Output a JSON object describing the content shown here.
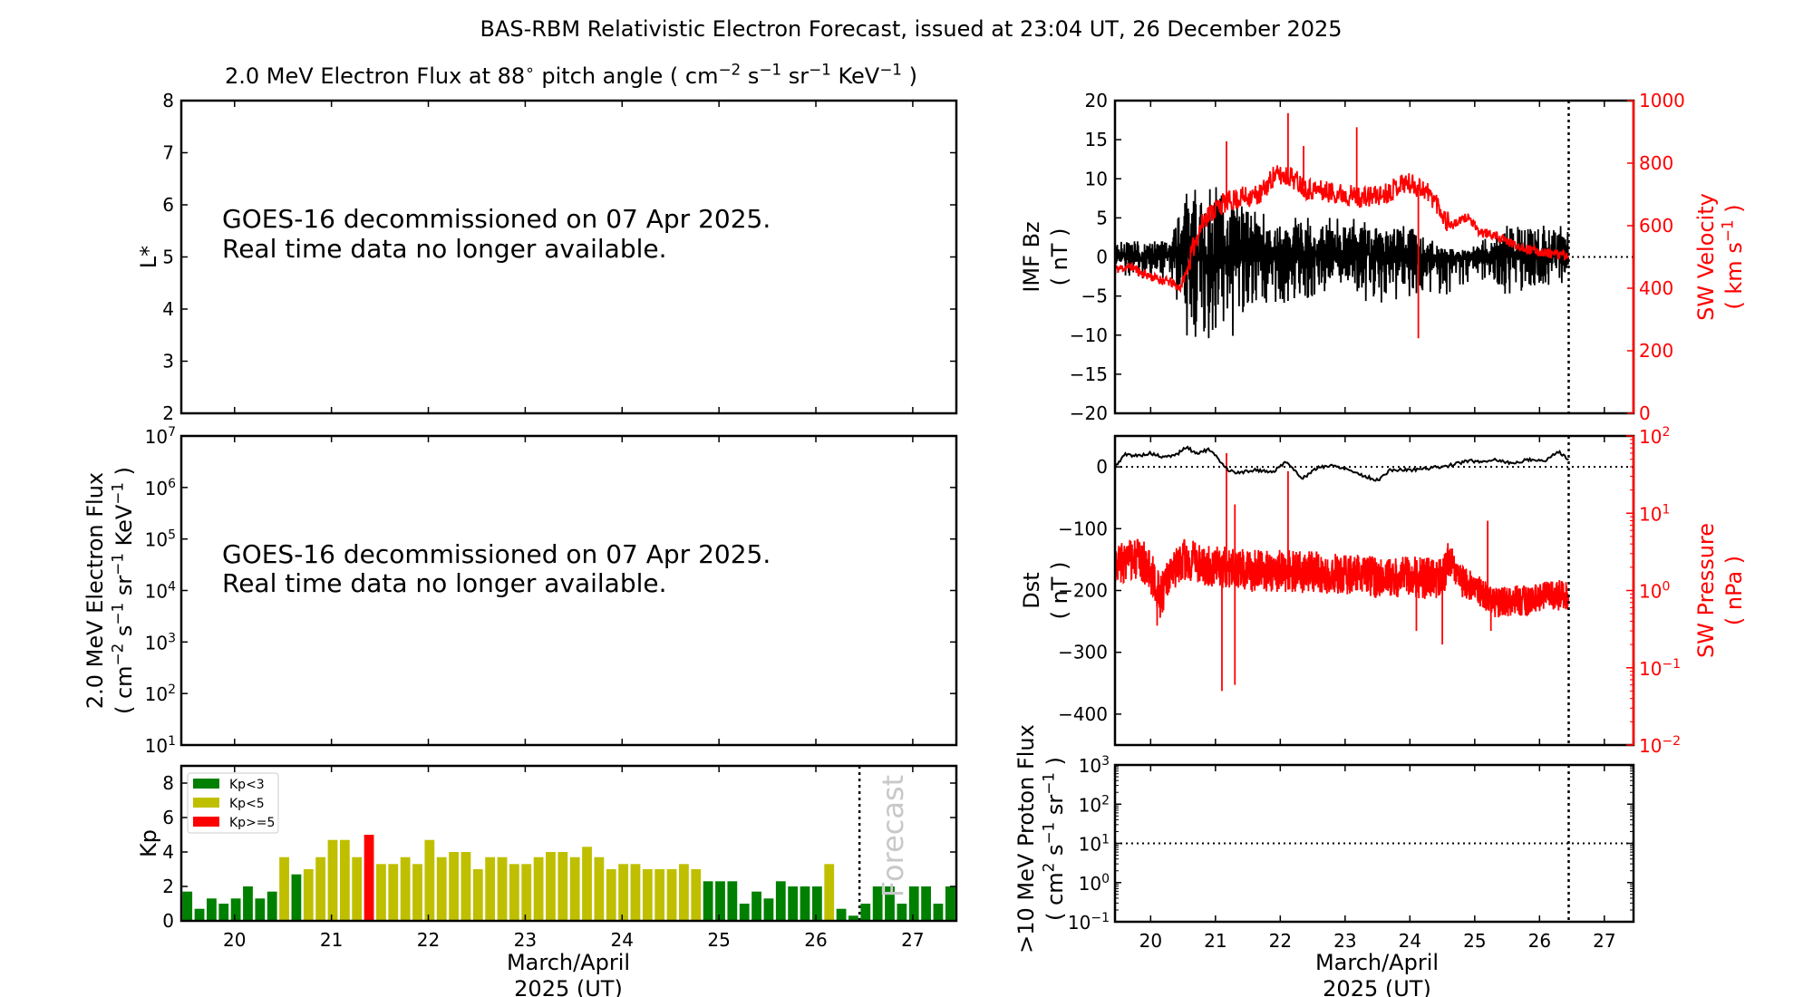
{
  "title": "BAS-RBM Relativistic Electron Forecast, issued at 23:04 UT, 26 December 2025",
  "left_title": [
    {
      "t": "2.0 MeV Electron Flux at 88"
    },
    {
      "t": "∘",
      "sup": true
    },
    {
      "t": "  pitch angle ( cm"
    },
    {
      "t": "−2",
      "sup": true
    },
    {
      "t": " s"
    },
    {
      "t": "−1",
      "sup": true
    },
    {
      "t": " sr"
    },
    {
      "t": "−1",
      "sup": true
    },
    {
      "t": " KeV"
    },
    {
      "t": "−1",
      "sup": true
    },
    {
      "t": " )"
    }
  ],
  "notices": {
    "lstar_line1": "GOES-16 decommissioned on 07 Apr 2025.",
    "lstar_line2": "Real time data no longer available.",
    "flux_line1": "GOES-16 decommissioned on 07 Apr 2025.",
    "flux_line2": "Real time data no longer available."
  },
  "xlabel_line1": "March/April",
  "xlabel_line2": "2025 (UT)",
  "forecast_label": "Forecast",
  "colors": {
    "kp_low": "#008000",
    "kp_mid": "#bfbf00",
    "kp_high": "#ff0000",
    "secondary": "#ff0000"
  },
  "chart_data": [
    {
      "id": "lstar",
      "type": "line",
      "ylabel": "L*",
      "ylim": [
        2,
        8
      ],
      "yticks": [
        2,
        3,
        4,
        5,
        6,
        7,
        8
      ],
      "xlim": [
        19.45,
        27.45
      ],
      "series": []
    },
    {
      "id": "electron_flux",
      "type": "line",
      "yscale": "log",
      "ylabel_line1": "2.0 MeV Electron Flux",
      "ylabel_line2": [
        {
          "t": "( cm"
        },
        {
          "t": "−2",
          "sup": true
        },
        {
          "t": " s"
        },
        {
          "t": "−1",
          "sup": true
        },
        {
          "t": " sr"
        },
        {
          "t": "−1",
          "sup": true
        },
        {
          "t": " KeV"
        },
        {
          "t": "−1",
          "sup": true
        },
        {
          "t": " )"
        }
      ],
      "ylim_exp": [
        1,
        7
      ],
      "ytick_exp": [
        1,
        2,
        3,
        4,
        5,
        6,
        7
      ],
      "xlim": [
        19.45,
        27.45
      ],
      "series": []
    },
    {
      "id": "kp",
      "type": "bar",
      "ylabel": "Kp",
      "ylim": [
        0,
        9
      ],
      "yticks": [
        0,
        2,
        4,
        6,
        8
      ],
      "xlim": [
        19.45,
        27.45
      ],
      "xticks": [
        20,
        21,
        22,
        23,
        24,
        25,
        26,
        27
      ],
      "bar_start": 19.45,
      "bar_step_days": 0.125,
      "forecast_from": 26.45,
      "legend": [
        "Kp<3",
        "Kp<5",
        "Kp>=5"
      ],
      "legend_position": "upper-left",
      "values": [
        1.7,
        0.7,
        1.3,
        1.0,
        1.3,
        2.0,
        1.3,
        1.7,
        3.7,
        2.7,
        3.0,
        3.7,
        4.7,
        4.7,
        3.7,
        5.0,
        3.3,
        3.3,
        3.7,
        3.3,
        4.7,
        3.7,
        4.0,
        4.0,
        3.0,
        3.7,
        3.7,
        3.3,
        3.3,
        3.7,
        4.0,
        4.0,
        3.7,
        4.3,
        3.7,
        3.0,
        3.3,
        3.3,
        3.0,
        3.0,
        3.0,
        3.3,
        3.0,
        2.3,
        2.3,
        2.3,
        1.0,
        1.7,
        1.3,
        2.3,
        2.0,
        2.0,
        2.0,
        3.3,
        0.7,
        0.3,
        1.0,
        2.0,
        2.0,
        1.0,
        2.0,
        2.0,
        1.0,
        2.0
      ]
    },
    {
      "id": "imf_sw",
      "type": "line",
      "ylabel_line1": "IMF Bz",
      "ylabel_line2": "( nT )",
      "ylim": [
        -20,
        20
      ],
      "yticks": [
        -20,
        -15,
        -10,
        -5,
        0,
        5,
        10,
        15,
        20
      ],
      "y2label_line1": "SW Velocity",
      "y2label_line2": [
        {
          "t": "( km s"
        },
        {
          "t": "−1",
          "sup": true
        },
        {
          "t": " )"
        }
      ],
      "y2lim": [
        0,
        1000
      ],
      "y2ticks": [
        0,
        200,
        400,
        600,
        800,
        1000
      ],
      "xlim": [
        19.45,
        27.45
      ],
      "issue_time": 26.45,
      "bz_envelope_max_min": [
        [
          19.45,
          2,
          -2.5
        ],
        [
          20.3,
          2,
          -3
        ],
        [
          20.4,
          5,
          -6
        ],
        [
          20.6,
          9,
          -12
        ],
        [
          21.0,
          9,
          -11
        ],
        [
          21.3,
          7,
          -11
        ],
        [
          21.5,
          6,
          -8
        ],
        [
          22.0,
          5,
          -6.5
        ],
        [
          22.5,
          5,
          -5
        ],
        [
          23.0,
          5,
          -5
        ],
        [
          23.5,
          4.5,
          -6
        ],
        [
          24.0,
          4.5,
          -5
        ],
        [
          24.5,
          1,
          -5
        ],
        [
          24.8,
          1,
          -4
        ],
        [
          25.0,
          1.5,
          -3.5
        ],
        [
          25.3,
          3,
          -4
        ],
        [
          25.5,
          4,
          -5
        ],
        [
          26.0,
          4,
          -4
        ],
        [
          26.45,
          4,
          -3.5
        ]
      ],
      "sw_velocity": [
        [
          19.45,
          460
        ],
        [
          19.7,
          470
        ],
        [
          19.85,
          450
        ],
        [
          20.1,
          430
        ],
        [
          20.3,
          420
        ],
        [
          20.45,
          400
        ],
        [
          20.55,
          450
        ],
        [
          20.7,
          560
        ],
        [
          20.85,
          630
        ],
        [
          21.1,
          670
        ],
        [
          21.4,
          690
        ],
        [
          21.7,
          700
        ],
        [
          21.9,
          760
        ],
        [
          22.15,
          760
        ],
        [
          22.4,
          720
        ],
        [
          22.7,
          710
        ],
        [
          23.0,
          700
        ],
        [
          23.3,
          690
        ],
        [
          23.6,
          700
        ],
        [
          23.9,
          740
        ],
        [
          24.2,
          720
        ],
        [
          24.4,
          680
        ],
        [
          24.55,
          620
        ],
        [
          24.65,
          600
        ],
        [
          24.9,
          630
        ],
        [
          25.05,
          580
        ],
        [
          25.3,
          570
        ],
        [
          25.6,
          540
        ],
        [
          25.9,
          520
        ],
        [
          26.2,
          510
        ],
        [
          26.45,
          505
        ]
      ],
      "sw_velocity_spikes": [
        [
          21.17,
          870
        ],
        [
          22.12,
          960
        ],
        [
          22.36,
          855
        ],
        [
          23.18,
          915
        ],
        [
          24.13,
          240
        ]
      ]
    },
    {
      "id": "dst_pressure",
      "type": "line",
      "ylabel_line1": "Dst",
      "ylabel_line2": "( nT )",
      "ylim": [
        -450,
        50
      ],
      "yticks": [
        0,
        -100,
        -200,
        -300,
        -400
      ],
      "y2label_line1": "SW Pressure",
      "y2label_line2": "( nPa )",
      "y2lim_exp": [
        -2,
        2
      ],
      "y2tick_exp": [
        -2,
        -1,
        0,
        1,
        2
      ],
      "xlim": [
        19.45,
        27.45
      ],
      "issue_time": 26.45,
      "dst": [
        [
          19.45,
          0
        ],
        [
          19.6,
          20
        ],
        [
          19.8,
          18
        ],
        [
          20.0,
          22
        ],
        [
          20.2,
          15
        ],
        [
          20.4,
          20
        ],
        [
          20.55,
          32
        ],
        [
          20.7,
          22
        ],
        [
          20.9,
          28
        ],
        [
          21.05,
          12
        ],
        [
          21.2,
          -5
        ],
        [
          21.35,
          -10
        ],
        [
          21.6,
          -5
        ],
        [
          21.9,
          -8
        ],
        [
          22.1,
          10
        ],
        [
          22.2,
          -5
        ],
        [
          22.35,
          -18
        ],
        [
          22.6,
          0
        ],
        [
          22.8,
          2
        ],
        [
          23.0,
          -2
        ],
        [
          23.3,
          -15
        ],
        [
          23.5,
          -22
        ],
        [
          23.7,
          -5
        ],
        [
          24.0,
          -5
        ],
        [
          24.3,
          -2
        ],
        [
          24.6,
          2
        ],
        [
          24.9,
          10
        ],
        [
          25.1,
          8
        ],
        [
          25.3,
          12
        ],
        [
          25.6,
          5
        ],
        [
          25.8,
          12
        ],
        [
          26.1,
          10
        ],
        [
          26.3,
          26
        ],
        [
          26.4,
          15
        ],
        [
          26.45,
          10
        ]
      ],
      "sw_pressure": [
        [
          19.45,
          2.3
        ],
        [
          19.75,
          2.5
        ],
        [
          19.9,
          2.3
        ],
        [
          20.15,
          0.8
        ],
        [
          20.3,
          1.5
        ],
        [
          20.5,
          2.5
        ],
        [
          20.8,
          2.2
        ],
        [
          21.1,
          2.0
        ],
        [
          21.5,
          1.8
        ],
        [
          22.0,
          1.8
        ],
        [
          22.5,
          1.7
        ],
        [
          23.0,
          1.6
        ],
        [
          23.5,
          1.5
        ],
        [
          24.0,
          1.5
        ],
        [
          24.5,
          1.4
        ],
        [
          24.6,
          2.5
        ],
        [
          24.8,
          1.3
        ],
        [
          25.0,
          1.1
        ],
        [
          25.3,
          0.7
        ],
        [
          25.8,
          0.75
        ],
        [
          26.45,
          0.9
        ]
      ],
      "sw_pressure_spikes": [
        [
          21.17,
          60
        ],
        [
          22.12,
          35
        ],
        [
          21.3,
          13
        ],
        [
          25.2,
          8
        ],
        [
          21.1,
          0.05
        ],
        [
          21.3,
          0.06
        ],
        [
          20.1,
          0.35
        ],
        [
          24.5,
          0.2
        ],
        [
          25.25,
          0.3
        ],
        [
          24.1,
          0.3
        ]
      ]
    },
    {
      "id": "proton_flux",
      "type": "line",
      "yscale": "log",
      "ylabel_line1": ">10 MeV Proton Flux",
      "ylabel_line2": [
        {
          "t": "( cm"
        },
        {
          "t": "2",
          "sup": true
        },
        {
          "t": " s"
        },
        {
          "t": "−1",
          "sup": true
        },
        {
          "t": " sr"
        },
        {
          "t": "−1",
          "sup": true
        },
        {
          "t": " )"
        }
      ],
      "ylim_exp": [
        -1,
        3
      ],
      "ytick_exp": [
        -1,
        0,
        1,
        2,
        3
      ],
      "threshold": 10,
      "xlim": [
        19.45,
        27.45
      ],
      "xticks": [
        20,
        21,
        22,
        23,
        24,
        25,
        26,
        27
      ],
      "issue_time": 26.45,
      "series": []
    }
  ]
}
